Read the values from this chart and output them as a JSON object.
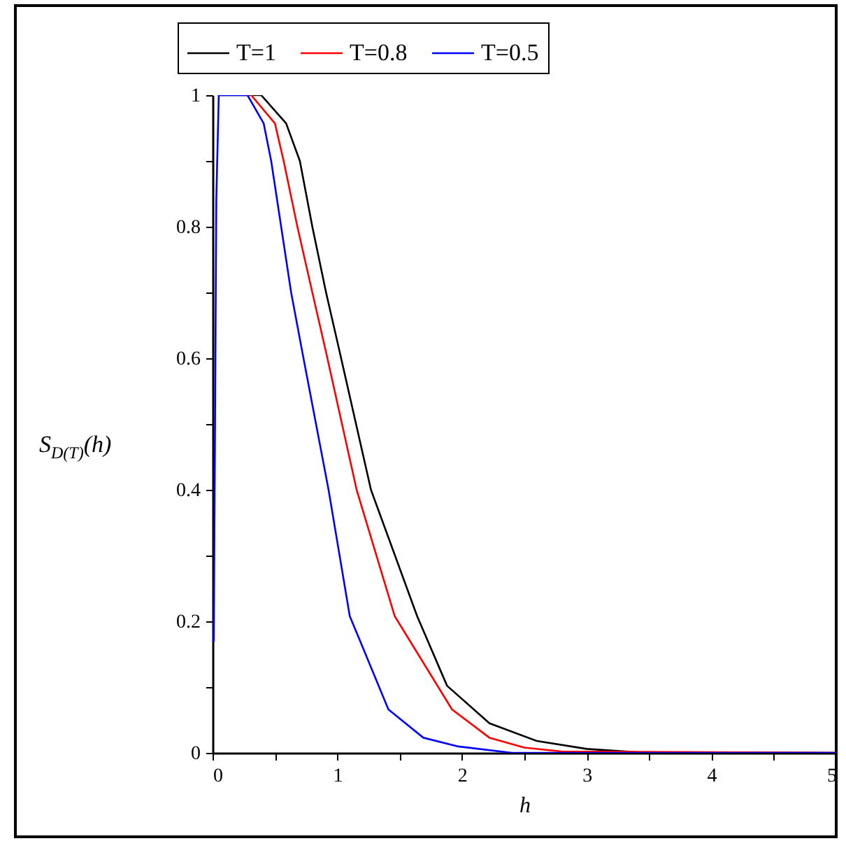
{
  "chart_data": {
    "type": "line",
    "xlabel": "h",
    "ylabel": "S$_{D(T)}$(h)",
    "xlim": [
      0,
      5
    ],
    "ylim": [
      0,
      1
    ],
    "xticks": [
      0,
      {
        "value": 0.5,
        "label": null
      },
      1,
      {
        "value": 1.5,
        "label": null
      },
      2,
      {
        "value": 2.5,
        "label": null
      },
      3,
      {
        "value": 3.5,
        "label": null
      },
      4,
      {
        "value": 4.5,
        "label": null
      },
      5
    ],
    "yticks": [
      0,
      {
        "value": 0.1,
        "label": null
      },
      0.2,
      {
        "value": 0.3,
        "label": null
      },
      0.4,
      {
        "value": 0.5,
        "label": null
      },
      0.6,
      {
        "value": 0.7,
        "label": null
      },
      0.8,
      {
        "value": 0.9,
        "label": null
      },
      1
    ],
    "grid": false,
    "legend": "top",
    "line_style": "solid",
    "series": [
      {
        "name": "T=1",
        "color": "#000000",
        "x": [
          0.05,
          0.39,
          0.59,
          0.7,
          0.8,
          0.91,
          1.02,
          1.27,
          1.64,
          1.88,
          2.22,
          2.6,
          3.0,
          3.4,
          5
        ],
        "values": [
          1,
          1,
          0.957,
          0.9,
          0.8,
          0.7,
          0.609,
          0.4,
          0.208,
          0.102,
          0.045,
          0.018,
          0.006,
          0.001,
          0
        ]
      },
      {
        "name": "T=0.8",
        "color": "#ff0000",
        "x": [
          0.31,
          0.5,
          0.57,
          0.68,
          0.8,
          0.91,
          1.155,
          1.46,
          1.92,
          2.22,
          2.5,
          2.8,
          5
        ],
        "values": [
          1,
          0.957,
          0.9,
          0.8,
          0.7,
          0.609,
          0.4,
          0.208,
          0.066,
          0.023,
          0.008,
          0.002,
          0
        ]
      },
      {
        "name": "T=0.5",
        "color": "#0000ff",
        "x": [
          0,
          0.01,
          0.02,
          0.03,
          0.05,
          0.28,
          0.41,
          0.47,
          0.55,
          0.63,
          0.72,
          0.93,
          1.1,
          1.41,
          1.69,
          1.96,
          2.4,
          5
        ],
        "values": [
          0.17,
          0.17,
          0.5,
          0.84,
          1,
          1,
          0.957,
          0.9,
          0.8,
          0.7,
          0.609,
          0.4,
          0.208,
          0.066,
          0.023,
          0.01,
          0,
          0
        ]
      }
    ]
  }
}
